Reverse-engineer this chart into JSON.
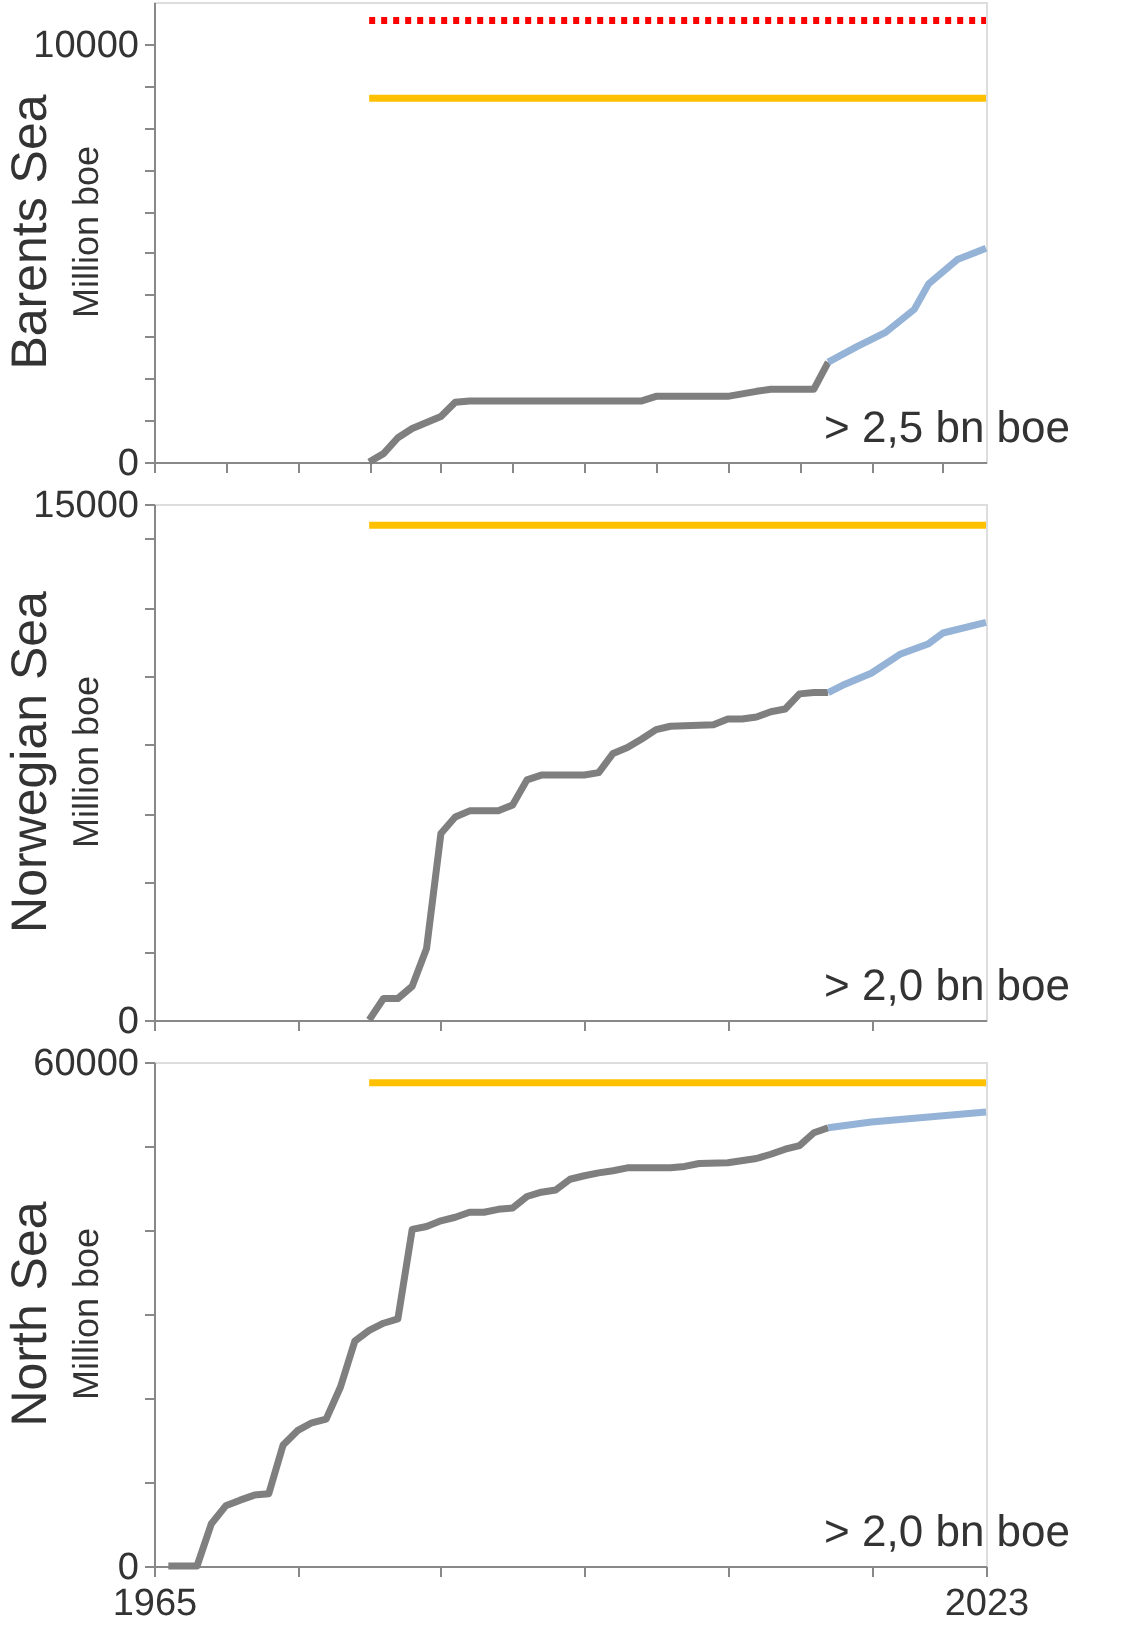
{
  "chart_data": [
    {
      "type": "line",
      "title": "Barents Sea",
      "ylabel": "Million boe",
      "grid": false,
      "marker": "none",
      "tick_labels": "y",
      "xlim": [
        1965,
        2023
      ],
      "ylim": [
        0,
        11000
      ],
      "xticks": [
        {
          "value": 1965,
          "label": null
        },
        {
          "value": 1970,
          "label": null
        },
        {
          "value": 1975,
          "label": null
        },
        {
          "value": 1980,
          "label": null
        },
        {
          "value": 1985,
          "label": null
        },
        {
          "value": 1990,
          "label": null
        },
        {
          "value": 1995,
          "label": null
        },
        {
          "value": 2000,
          "label": null
        },
        {
          "value": 2005,
          "label": null
        },
        {
          "value": 2010,
          "label": null
        },
        {
          "value": 2015,
          "label": null
        },
        {
          "value": 2020,
          "label": null
        }
      ],
      "yticks": [
        0,
        {
          "value": 1000,
          "label": null
        },
        {
          "value": 2000,
          "label": null
        },
        {
          "value": 3000,
          "label": null
        },
        {
          "value": 4000,
          "label": null
        },
        {
          "value": 5000,
          "label": null
        },
        {
          "value": 6000,
          "label": null
        },
        {
          "value": 7000,
          "label": null
        },
        {
          "value": 8000,
          "label": null
        },
        {
          "value": 9000,
          "label": null
        },
        10000
      ],
      "annotations": [
        "> 2,5 bn boe"
      ],
      "series": [
        {
          "color": "#7f7f7f",
          "line_style": "solid",
          "x": [
            1980,
            1981,
            1982,
            1983,
            1985,
            1986,
            1987,
            1999,
            2000,
            2005,
            2007,
            2008,
            2011,
            2012
          ],
          "values": [
            0,
            200,
            580,
            800,
            1090,
            1430,
            1460,
            1460,
            1570,
            1570,
            1690,
            1740,
            1740,
            2390
          ]
        },
        {
          "color": "#95b3d7",
          "line_style": "solid",
          "x": [
            2012,
            2014,
            2016,
            2018,
            2019,
            2021,
            2023
          ],
          "values": [
            2390,
            2760,
            3100,
            3650,
            4260,
            4840,
            5110
          ]
        },
        {
          "color": "#ffc000",
          "line_style": "solid",
          "x": [
            1980,
            2023
          ],
          "values": [
            8700,
            8700
          ]
        },
        {
          "color": "#ff0000",
          "line_style": "dotted",
          "x": [
            1980,
            2023
          ],
          "values": [
            10560,
            10560
          ]
        }
      ]
    },
    {
      "type": "line",
      "title": "Norwegian Sea",
      "ylabel": "Million boe",
      "grid": false,
      "marker": "none",
      "tick_labels": "y",
      "xlim": [
        1965,
        2023
      ],
      "ylim": [
        0,
        15000
      ],
      "xticks": [
        {
          "value": 1965,
          "label": null
        },
        {
          "value": 1975,
          "label": null
        },
        {
          "value": 1985,
          "label": null
        },
        {
          "value": 1995,
          "label": null
        },
        {
          "value": 2005,
          "label": null
        },
        {
          "value": 2015,
          "label": null
        }
      ],
      "yticks": [
        0,
        {
          "value": 2000,
          "label": null
        },
        {
          "value": 4000,
          "label": null
        },
        {
          "value": 6000,
          "label": null
        },
        {
          "value": 8000,
          "label": null
        },
        {
          "value": 10000,
          "label": null
        },
        {
          "value": 12000,
          "label": null
        },
        {
          "value": 14000,
          "label": null
        },
        15000
      ],
      "annotations": [
        "> 2,0 bn boe"
      ],
      "series": [
        {
          "color": "#7f7f7f",
          "line_style": "solid",
          "x": [
            1980,
            1981,
            1982,
            1983,
            1984,
            1985,
            1986,
            1987,
            1989,
            1990,
            1991,
            1992,
            1995,
            1996,
            1997,
            1998,
            1999,
            2000,
            2001,
            2004,
            2005,
            2006,
            2007,
            2008,
            2009,
            2010,
            2011,
            2012
          ],
          "values": [
            0,
            625,
            625,
            980,
            2080,
            5420,
            5900,
            6080,
            6080,
            6250,
            6980,
            7120,
            7120,
            7190,
            7750,
            7920,
            8170,
            8440,
            8540,
            8580,
            8750,
            8750,
            8810,
            8960,
            9040,
            9480,
            9520,
            9520
          ]
        },
        {
          "color": "#95b3d7",
          "line_style": "solid",
          "x": [
            2012,
            2013,
            2015,
            2017,
            2019,
            2020,
            2023
          ],
          "values": [
            9520,
            9730,
            10080,
            10630,
            10940,
            11250,
            11560
          ]
        },
        {
          "color": "#ffc000",
          "line_style": "solid",
          "x": [
            1980,
            2023
          ],
          "values": [
            14380,
            14380
          ]
        }
      ]
    },
    {
      "type": "line",
      "title": "North Sea",
      "ylabel": "Million boe",
      "grid": false,
      "marker": "none",
      "xlim": [
        1965,
        2023
      ],
      "ylim": [
        0,
        60000
      ],
      "xticks": [
        1965,
        {
          "value": 1975,
          "label": null
        },
        {
          "value": 1985,
          "label": null
        },
        {
          "value": 1995,
          "label": null
        },
        {
          "value": 2005,
          "label": null
        },
        {
          "value": 2015,
          "label": null
        },
        2023
      ],
      "yticks": [
        0,
        {
          "value": 10000,
          "label": null
        },
        {
          "value": 20000,
          "label": null
        },
        {
          "value": 30000,
          "label": null
        },
        {
          "value": 40000,
          "label": null
        },
        {
          "value": 50000,
          "label": null
        },
        60000
      ],
      "annotations": [
        "> 2,0 bn boe"
      ],
      "series": [
        {
          "color": "#7f7f7f",
          "line_style": "solid",
          "x": [
            1966,
            1968,
            1969,
            1970,
            1971,
            1972,
            1973,
            1974,
            1975,
            1976,
            1977,
            1978,
            1979,
            1980,
            1981,
            1982,
            1983,
            1984,
            1985,
            1986,
            1987,
            1988,
            1989,
            1990,
            1991,
            1992,
            1993,
            1994,
            1995,
            1996,
            1997,
            1998,
            2001,
            2002,
            2003,
            2005,
            2007,
            2008,
            2009,
            2010,
            2011,
            2012
          ],
          "values": [
            0,
            0,
            5030,
            7160,
            7840,
            8440,
            8610,
            14400,
            16110,
            17050,
            17480,
            21310,
            26770,
            28050,
            28900,
            29410,
            40070,
            40410,
            41090,
            41520,
            42110,
            42110,
            42460,
            42630,
            43990,
            44500,
            44760,
            46040,
            46460,
            46800,
            47060,
            47400,
            47400,
            47570,
            47910,
            48000,
            48510,
            49020,
            49620,
            50040,
            51580,
            52170
          ]
        },
        {
          "color": "#95b3d7",
          "line_style": "solid",
          "x": [
            2012,
            2015,
            2019,
            2023
          ],
          "values": [
            52170,
            52850,
            53450,
            54050
          ]
        },
        {
          "color": "#ffc000",
          "line_style": "solid",
          "x": [
            1980,
            2023
          ],
          "values": [
            57540,
            57540
          ]
        }
      ]
    }
  ]
}
